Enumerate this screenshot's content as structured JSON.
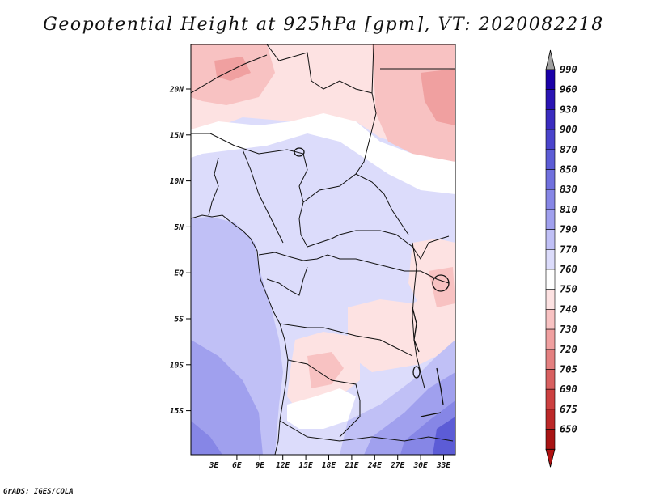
{
  "title": "Geopotential Height at 925hPa [gpm], VT: 2020082218",
  "credit": "GrADS: IGES/COLA",
  "map": {
    "lat_ticks": [
      "20N",
      "15N",
      "10N",
      "5N",
      "EQ",
      "5S",
      "10S",
      "15S"
    ],
    "lon_ticks": [
      "3E",
      "6E",
      "9E",
      "12E",
      "15E",
      "18E",
      "21E",
      "24E",
      "27E",
      "30E",
      "33E"
    ]
  },
  "colorbar": {
    "levels": [
      "990",
      "960",
      "930",
      "900",
      "870",
      "850",
      "830",
      "810",
      "790",
      "770",
      "760",
      "750",
      "740",
      "730",
      "720",
      "705",
      "690",
      "675",
      "650"
    ],
    "colors": [
      "#1a00a8",
      "#2a14b4",
      "#3a2cc0",
      "#4a44cc",
      "#5c5cd6",
      "#7070de",
      "#8686e6",
      "#a0a0ee",
      "#c0c0f6",
      "#dcdcfb",
      "#ffffff",
      "#fde2e2",
      "#f8c2c2",
      "#f0a0a0",
      "#e48080",
      "#d86060",
      "#cc4040",
      "#bc2828",
      "#a81414"
    ],
    "top_arrow_color": "#a0a0a0",
    "bottom_arrow_color": "#b01010"
  },
  "colors": {
    "land_main": "#dcdcfb",
    "warm_light": "#fde2e2",
    "warm_mid": "#f8c2c2",
    "warm_dark": "#f0a0a0",
    "cool_mid": "#c0c0f6",
    "cool_dark": "#a0a0ee",
    "cool_deep": "#8686e6",
    "cool_deepest": "#5c5cd6"
  }
}
